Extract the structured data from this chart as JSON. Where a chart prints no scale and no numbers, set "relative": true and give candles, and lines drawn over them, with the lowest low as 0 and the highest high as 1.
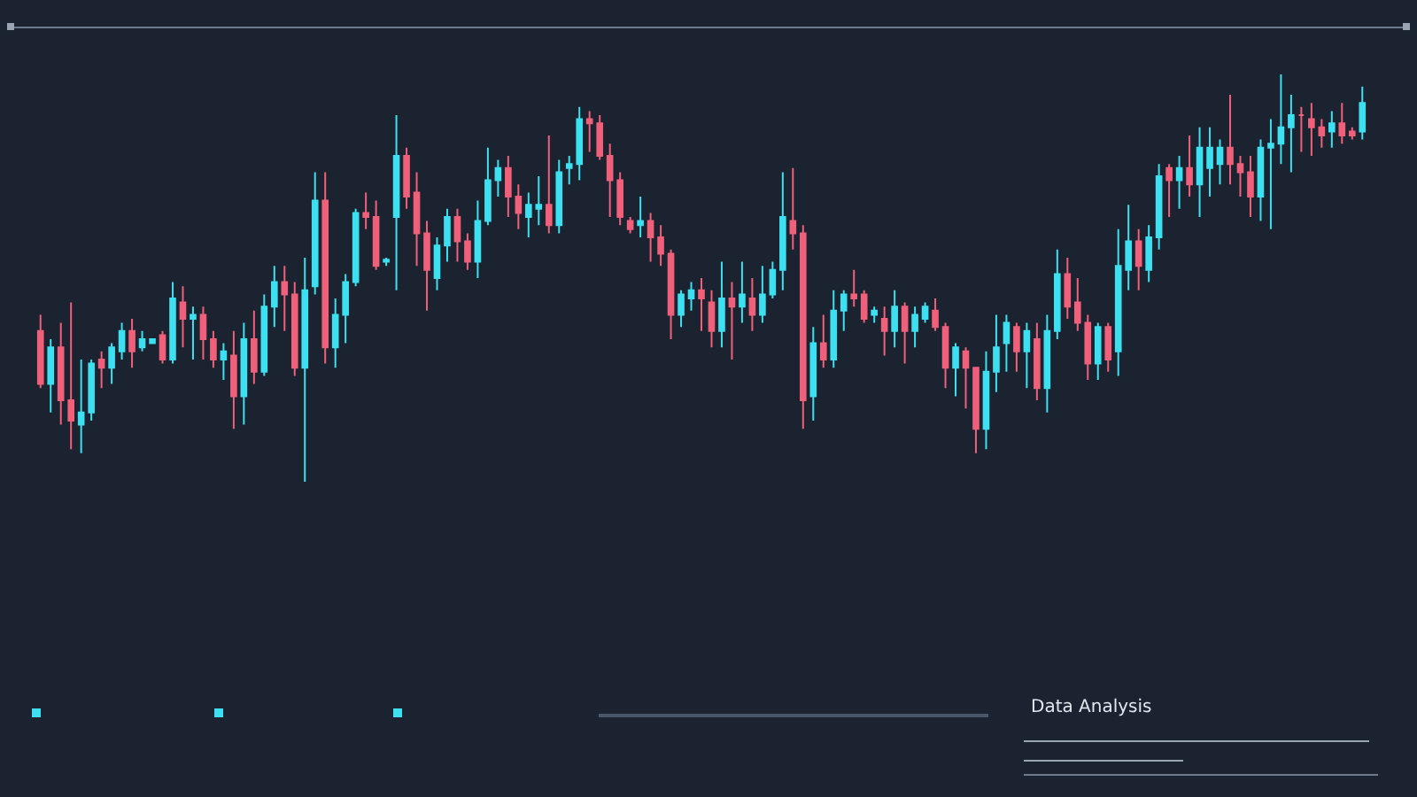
{
  "chart_data": {
    "type": "candlestick",
    "relative": true,
    "annotations": [
      "Data Analysis"
    ],
    "categories": [
      null,
      null,
      null,
      null,
      null,
      null,
      null,
      null,
      null,
      null,
      null,
      null,
      null,
      null,
      null,
      null,
      null,
      null,
      null,
      null,
      null,
      null,
      null,
      null,
      null,
      null,
      null,
      null,
      null,
      null,
      null,
      null,
      null,
      null,
      null,
      null,
      null,
      null,
      null,
      null,
      null,
      null,
      null,
      null,
      null,
      null,
      null,
      null,
      null,
      null,
      null,
      null,
      null,
      null,
      null,
      null,
      null,
      null,
      null,
      null,
      null,
      null,
      null,
      null,
      null,
      null,
      null,
      null,
      null,
      null,
      null,
      null,
      null,
      null,
      null,
      null,
      null,
      null,
      null,
      null,
      null,
      null,
      null,
      null,
      null,
      null,
      null,
      null,
      null,
      null,
      null,
      null,
      null,
      null,
      null,
      null,
      null,
      null,
      null,
      null,
      null,
      null,
      null,
      null,
      null,
      null,
      null,
      null,
      null,
      null,
      null,
      null,
      null,
      null,
      null,
      null,
      null,
      null,
      null,
      null,
      null,
      null,
      null,
      null,
      null,
      null,
      null,
      null,
      null,
      null,
      null
    ],
    "ohlc": [
      [
        0.37,
        0.41,
        0.23,
        0.24
      ],
      [
        0.24,
        0.35,
        0.17,
        0.33
      ],
      [
        0.33,
        0.39,
        0.14,
        0.2
      ],
      [
        0.2,
        0.44,
        0.08,
        0.15
      ],
      [
        0.14,
        0.3,
        0.07,
        0.17
      ],
      [
        0.17,
        0.3,
        0.15,
        0.29
      ],
      [
        0.3,
        0.32,
        0.23,
        0.28
      ],
      [
        0.28,
        0.34,
        0.24,
        0.33
      ],
      [
        0.32,
        0.39,
        0.3,
        0.37
      ],
      [
        0.37,
        0.4,
        0.28,
        0.32
      ],
      [
        0.33,
        0.37,
        0.32,
        0.35
      ],
      [
        0.34,
        0.35,
        0.34,
        0.35
      ],
      [
        0.36,
        0.37,
        0.29,
        0.3
      ],
      [
        0.3,
        0.49,
        0.29,
        0.45
      ],
      [
        0.44,
        0.48,
        0.33,
        0.4
      ],
      [
        0.4,
        0.43,
        0.3,
        0.41
      ],
      [
        0.41,
        0.43,
        0.3,
        0.35
      ],
      [
        0.35,
        0.37,
        0.28,
        0.3
      ],
      [
        0.3,
        0.34,
        0.25,
        0.32
      ],
      [
        0.31,
        0.37,
        0.13,
        0.21
      ],
      [
        0.21,
        0.39,
        0.14,
        0.35
      ],
      [
        0.35,
        0.42,
        0.24,
        0.27
      ],
      [
        0.27,
        0.46,
        0.26,
        0.43
      ],
      [
        0.43,
        0.53,
        0.38,
        0.49
      ],
      [
        0.49,
        0.53,
        0.37,
        0.46
      ],
      [
        0.46,
        0.49,
        0.26,
        0.28
      ],
      [
        0.28,
        0.55,
        0,
        0.47
      ],
      [
        0.48,
        0.76,
        0.46,
        0.69
      ],
      [
        0.69,
        0.76,
        0.29,
        0.33
      ],
      [
        0.33,
        0.45,
        0.28,
        0.41
      ],
      [
        0.41,
        0.51,
        0.34,
        0.49
      ],
      [
        0.49,
        0.67,
        0.48,
        0.66
      ],
      [
        0.66,
        0.71,
        0.62,
        0.65
      ],
      [
        0.65,
        0.69,
        0.52,
        0.53
      ],
      [
        0.54,
        0.55,
        0.53,
        0.545
      ],
      [
        0.65,
        0.9,
        0.47,
        0.8
      ],
      [
        0.8,
        0.82,
        0.67,
        0.7
      ],
      [
        0.71,
        0.76,
        0.53,
        0.61
      ],
      [
        0.61,
        0.64,
        0.42,
        0.52
      ],
      [
        0.5,
        0.6,
        0.47,
        0.58
      ],
      [
        0.58,
        0.67,
        0.54,
        0.65
      ],
      [
        0.65,
        0.67,
        0.54,
        0.59
      ],
      [
        0.59,
        0.61,
        0.52,
        0.54
      ],
      [
        0.54,
        0.69,
        0.5,
        0.64
      ],
      [
        0.64,
        0.82,
        0.63,
        0.74
      ],
      [
        0.74,
        0.79,
        0.7,
        0.77
      ],
      [
        0.77,
        0.8,
        0.65,
        0.7
      ],
      [
        0.7,
        0.73,
        0.62,
        0.66
      ],
      [
        0.65,
        0.71,
        0.6,
        0.68
      ],
      [
        0.67,
        0.75,
        0.63,
        0.68
      ],
      [
        0.68,
        0.85,
        0.61,
        0.63
      ],
      [
        0.63,
        0.79,
        0.61,
        0.76
      ],
      [
        0.77,
        0.8,
        0.73,
        0.78
      ],
      [
        0.78,
        0.92,
        0.74,
        0.89
      ],
      [
        0.89,
        0.91,
        0.81,
        0.88
      ],
      [
        0.88,
        0.9,
        0.79,
        0.8
      ],
      [
        0.8,
        0.83,
        0.65,
        0.74
      ],
      [
        0.74,
        0.76,
        0.63,
        0.65
      ],
      [
        0.64,
        0.65,
        0.61,
        0.62
      ],
      [
        0.63,
        0.7,
        0.6,
        0.64
      ],
      [
        0.64,
        0.66,
        0.54,
        0.6
      ],
      [
        0.6,
        0.63,
        0.53,
        0.56
      ],
      [
        0.56,
        0.57,
        0.35,
        0.41
      ],
      [
        0.41,
        0.47,
        0.38,
        0.46
      ],
      [
        0.45,
        0.49,
        0.42,
        0.47
      ],
      [
        0.47,
        0.5,
        0.37,
        0.45
      ],
      [
        0.44,
        0.47,
        0.33,
        0.37
      ],
      [
        0.37,
        0.54,
        0.33,
        0.45
      ],
      [
        0.45,
        0.49,
        0.3,
        0.43
      ],
      [
        0.43,
        0.54,
        0.39,
        0.46
      ],
      [
        0.45,
        0.5,
        0.37,
        0.41
      ],
      [
        0.41,
        0.53,
        0.39,
        0.46
      ],
      [
        0.46,
        0.54,
        0.45,
        0.52
      ],
      [
        0.52,
        0.76,
        0.47,
        0.65
      ],
      [
        0.64,
        0.77,
        0.57,
        0.61
      ],
      [
        0.61,
        0.63,
        0.13,
        0.2
      ],
      [
        0.21,
        0.38,
        0.15,
        0.34
      ],
      [
        0.34,
        0.41,
        0.28,
        0.3
      ],
      [
        0.3,
        0.47,
        0.28,
        0.42
      ],
      [
        0.42,
        0.47,
        0.37,
        0.46
      ],
      [
        0.46,
        0.52,
        0.43,
        0.45
      ],
      [
        0.46,
        0.47,
        0.39,
        0.4
      ],
      [
        0.41,
        0.43,
        0.39,
        0.42
      ],
      [
        0.4,
        0.43,
        0.31,
        0.37
      ],
      [
        0.37,
        0.47,
        0.33,
        0.43
      ],
      [
        0.43,
        0.44,
        0.29,
        0.37
      ],
      [
        0.37,
        0.43,
        0.33,
        0.41
      ],
      [
        0.4,
        0.44,
        0.39,
        0.43
      ],
      [
        0.42,
        0.45,
        0.37,
        0.38
      ],
      [
        0.38,
        0.39,
        0.23,
        0.28
      ],
      [
        0.28,
        0.34,
        0.21,
        0.33
      ],
      [
        0.32,
        0.33,
        0.18,
        0.28
      ],
      [
        0.28,
        0.28,
        0.07,
        0.13
      ],
      [
        0.13,
        0.32,
        0.08,
        0.27
      ],
      [
        0.27,
        0.41,
        0.22,
        0.33
      ],
      [
        0.34,
        0.41,
        0.27,
        0.39
      ],
      [
        0.38,
        0.39,
        0.27,
        0.32
      ],
      [
        0.32,
        0.39,
        0.23,
        0.37
      ],
      [
        0.35,
        0.39,
        0.2,
        0.23
      ],
      [
        0.23,
        0.41,
        0.17,
        0.37
      ],
      [
        0.37,
        0.57,
        0.35,
        0.51
      ],
      [
        0.51,
        0.55,
        0.4,
        0.43
      ],
      [
        0.44,
        0.5,
        0.37,
        0.39
      ],
      [
        0.39,
        0.41,
        0.25,
        0.29
      ],
      [
        0.29,
        0.39,
        0.25,
        0.38
      ],
      [
        0.38,
        0.39,
        0.27,
        0.3
      ],
      [
        0.32,
        0.62,
        0.26,
        0.53
      ],
      [
        0.52,
        0.68,
        0.47,
        0.59
      ],
      [
        0.59,
        0.62,
        0.47,
        0.53
      ],
      [
        0.52,
        0.63,
        0.49,
        0.6
      ],
      [
        0.6,
        0.78,
        0.57,
        0.75
      ],
      [
        0.77,
        0.78,
        0.65,
        0.74
      ],
      [
        0.74,
        0.8,
        0.67,
        0.77
      ],
      [
        0.77,
        0.85,
        0.7,
        0.73
      ],
      [
        0.73,
        0.87,
        0.65,
        0.82
      ],
      [
        0.77,
        0.87,
        0.7,
        0.82
      ],
      [
        0.78,
        0.84,
        0.73,
        0.82
      ],
      [
        0.82,
        0.95,
        0.73,
        0.78
      ],
      [
        0.78,
        0.8,
        0.7,
        0.76
      ],
      [
        0.76,
        0.8,
        0.65,
        0.7
      ],
      [
        0.7,
        0.84,
        0.64,
        0.82
      ],
      [
        0.82,
        0.89,
        0.62,
        0.83
      ],
      [
        0.83,
        1,
        0.78,
        0.87
      ],
      [
        0.87,
        0.95,
        0.76,
        0.9
      ],
      [
        0.9,
        0.92,
        0.81,
        0.9
      ],
      [
        0.89,
        0.93,
        0.8,
        0.87
      ],
      [
        0.87,
        0.89,
        0.82,
        0.85
      ],
      [
        0.86,
        0.91,
        0.82,
        0.88
      ],
      [
        0.88,
        0.93,
        0.83,
        0.85
      ],
      [
        0.86,
        0.87,
        0.84,
        0.85
      ],
      [
        0.86,
        0.97,
        0.84,
        0.93
      ]
    ],
    "colors": [
      "#f0607a",
      "#3de0f0",
      "#f0607a",
      "#f0607a",
      "#3de0f0",
      "#3de0f0",
      "#f0607a",
      "#3de0f0",
      "#3de0f0",
      "#f0607a",
      "#3de0f0",
      "#3de0f0",
      "#f0607a",
      "#3de0f0",
      "#f0607a",
      "#3de0f0",
      "#f0607a",
      "#f0607a",
      "#3de0f0",
      "#f0607a",
      "#3de0f0",
      "#f0607a",
      "#3de0f0",
      "#3de0f0",
      "#f0607a",
      "#f0607a",
      "#3de0f0",
      "#3de0f0",
      "#f0607a",
      "#3de0f0",
      "#3de0f0",
      "#3de0f0",
      "#f0607a",
      "#f0607a",
      "#3de0f0",
      "#3de0f0",
      "#f0607a",
      "#f0607a",
      "#f0607a",
      "#3de0f0",
      "#3de0f0",
      "#f0607a",
      "#f0607a",
      "#3de0f0",
      "#3de0f0",
      "#3de0f0",
      "#f0607a",
      "#f0607a",
      "#3de0f0",
      "#3de0f0",
      "#f0607a",
      "#3de0f0",
      "#3de0f0",
      "#3de0f0",
      "#f0607a",
      "#f0607a",
      "#f0607a",
      "#f0607a",
      "#f0607a",
      "#3de0f0",
      "#f0607a",
      "#f0607a",
      "#f0607a",
      "#3de0f0",
      "#3de0f0",
      "#f0607a",
      "#f0607a",
      "#3de0f0",
      "#f0607a",
      "#3de0f0",
      "#f0607a",
      "#3de0f0",
      "#3de0f0",
      "#3de0f0",
      "#f0607a",
      "#f0607a",
      "#3de0f0",
      "#f0607a",
      "#3de0f0",
      "#3de0f0",
      "#f0607a",
      "#f0607a",
      "#3de0f0",
      "#f0607a",
      "#3de0f0",
      "#f0607a",
      "#3de0f0",
      "#3de0f0",
      "#f0607a",
      "#f0607a",
      "#3de0f0",
      "#f0607a",
      "#f0607a",
      "#3de0f0",
      "#3de0f0",
      "#3de0f0",
      "#f0607a",
      "#3de0f0",
      "#f0607a",
      "#3de0f0",
      "#3de0f0",
      "#f0607a",
      "#f0607a",
      "#f0607a",
      "#3de0f0",
      "#f0607a",
      "#3de0f0",
      "#3de0f0",
      "#f0607a",
      "#3de0f0",
      "#3de0f0",
      "#f0607a",
      "#3de0f0",
      "#f0607a",
      "#3de0f0",
      "#3de0f0",
      "#3de0f0",
      "#f0607a",
      "#f0607a",
      "#f0607a",
      "#3de0f0",
      "#3de0f0",
      "#3de0f0",
      "#3de0f0",
      "#f0607a",
      "#f0607a",
      "#f0607a",
      "#3de0f0",
      "#f0607a",
      "#f0607a",
      "#3de0f0"
    ]
  }
}
